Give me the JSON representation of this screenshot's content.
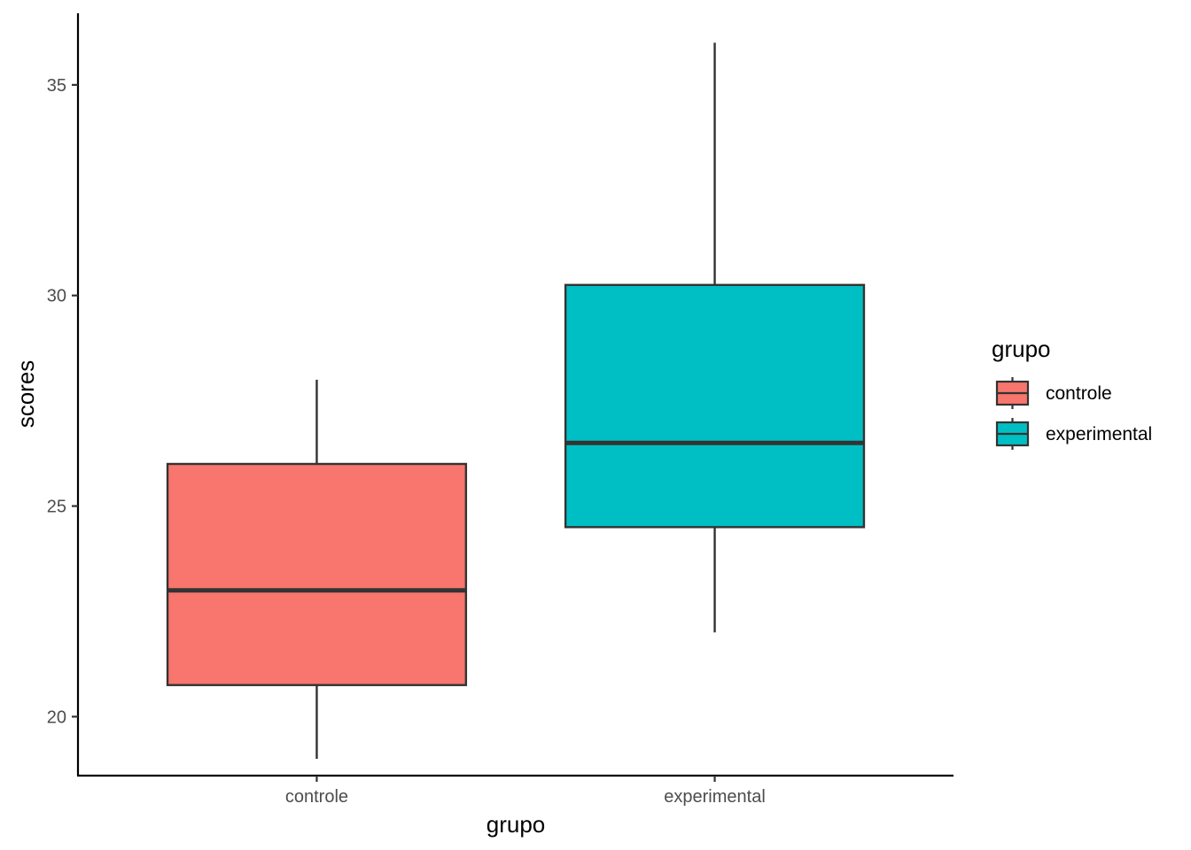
{
  "chart_data": {
    "type": "boxplot",
    "xlabel": "grupo",
    "ylabel": "scores",
    "categories": [
      "controle",
      "experimental"
    ],
    "ylim": [
      18.6,
      36.7
    ],
    "yticks": [
      20,
      25,
      30,
      35
    ],
    "grid": false,
    "legend": {
      "title": "grupo",
      "position": "right",
      "entries": [
        "controle",
        "experimental"
      ]
    },
    "series": [
      {
        "name": "controle",
        "color": "#F8766D",
        "min": 19,
        "q1": 20.75,
        "median": 23,
        "q3": 26,
        "max": 28
      },
      {
        "name": "experimental",
        "color": "#00BFC4",
        "min": 22,
        "q1": 24.5,
        "median": 26.5,
        "q3": 30.25,
        "max": 36
      }
    ]
  }
}
